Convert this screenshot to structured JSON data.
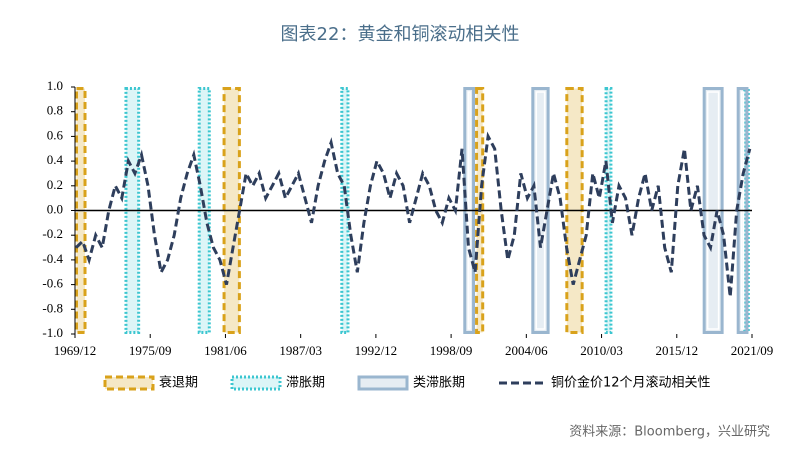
{
  "chart_data": {
    "type": "line",
    "title": "图表22：黄金和铜滚动相关性",
    "source": "资料来源：Bloomberg，兴业研究",
    "xlim": [
      1969.92,
      2021.67
    ],
    "xticks": [
      {
        "value": 1969.92,
        "label": "1969/12"
      },
      {
        "value": 1975.67,
        "label": "1975/09"
      },
      {
        "value": 1981.42,
        "label": "1981/06"
      },
      {
        "value": 1987.17,
        "label": "1987/03"
      },
      {
        "value": 1992.92,
        "label": "1992/12"
      },
      {
        "value": 1998.67,
        "label": "1998/09"
      },
      {
        "value": 2004.42,
        "label": "2004/06"
      },
      {
        "value": 2010.17,
        "label": "2010/03"
      },
      {
        "value": 2015.92,
        "label": "2015/12"
      },
      {
        "value": 2021.67,
        "label": "2021/09"
      }
    ],
    "ylim": [
      -1,
      1
    ],
    "yticks": [
      {
        "value": 1,
        "label": "1.0"
      },
      0.8,
      0.6,
      0.4,
      0.2,
      {
        "value": 0,
        "label": "0.0"
      },
      -0.2,
      -0.4,
      -0.6,
      -0.8,
      {
        "value": -1,
        "label": "-1.0"
      }
    ],
    "periods": [
      {
        "name": "衰退期",
        "color": "#d9a21b",
        "style": "dashed",
        "ranges": [
          [
            1969.92,
            1970.8
          ],
          [
            1981.2,
            1982.6
          ],
          [
            2000.5,
            2001.2
          ],
          [
            2007.4,
            2008.8
          ]
        ]
      },
      {
        "name": "滞胀期",
        "color": "#3cc6d0",
        "style": "dotted",
        "ranges": [
          [
            1973.7,
            1974.9
          ],
          [
            1979.3,
            1980.3
          ],
          [
            1990.2,
            1990.9
          ],
          [
            2010.4,
            2011.0
          ],
          [
            2021.0,
            2021.5
          ]
        ]
      },
      {
        "name": "类滞胀期",
        "color": "#9ab6cf",
        "style": "double",
        "ranges": [
          [
            1999.6,
            2000.5
          ],
          [
            2004.8,
            2006.2
          ],
          [
            2017.9,
            2019.5
          ],
          [
            2020.5,
            2021.4
          ]
        ]
      }
    ],
    "x": [
      1970,
      1970.5,
      1971,
      1971.5,
      1972,
      1972.5,
      1973,
      1973.5,
      1974,
      1974.5,
      1975,
      1975.5,
      1976,
      1976.5,
      1977,
      1977.5,
      1978,
      1978.5,
      1979,
      1979.5,
      1980,
      1980.5,
      1981,
      1981.5,
      1982,
      1982.5,
      1983,
      1983.5,
      1984,
      1984.5,
      1985,
      1985.5,
      1986,
      1986.5,
      1987,
      1987.5,
      1988,
      1988.5,
      1989,
      1989.5,
      1990,
      1990.5,
      1991,
      1991.5,
      1992,
      1992.5,
      1993,
      1993.5,
      1994,
      1994.5,
      1995,
      1995.5,
      1996,
      1996.5,
      1997,
      1997.5,
      1998,
      1998.5,
      1999,
      1999.5,
      2000,
      2000.5,
      2001,
      2001.5,
      2002,
      2002.5,
      2003,
      2003.5,
      2004,
      2004.5,
      2005,
      2005.5,
      2006,
      2006.5,
      2007,
      2007.5,
      2008,
      2008.5,
      2009,
      2009.5,
      2010,
      2010.5,
      2011,
      2011.5,
      2012,
      2012.5,
      2013,
      2013.5,
      2014,
      2014.5,
      2015,
      2015.5,
      2016,
      2016.5,
      2017,
      2017.5,
      2018,
      2018.5,
      2019,
      2019.5,
      2020,
      2020.5,
      2021,
      2021.5
    ],
    "series": [
      {
        "name": "铜价金价12个月滚动相关性",
        "color": "#2e3e5c",
        "values": [
          -0.3,
          -0.25,
          -0.4,
          -0.2,
          -0.3,
          0.0,
          0.2,
          0.1,
          0.4,
          0.3,
          0.45,
          0.2,
          -0.2,
          -0.5,
          -0.4,
          -0.2,
          0.1,
          0.3,
          0.45,
          0.2,
          -0.1,
          -0.3,
          -0.4,
          -0.6,
          -0.3,
          0.0,
          0.3,
          0.2,
          0.3,
          0.1,
          0.2,
          0.3,
          0.1,
          0.2,
          0.3,
          0.1,
          -0.1,
          0.2,
          0.4,
          0.55,
          0.3,
          0.2,
          -0.2,
          -0.5,
          -0.1,
          0.2,
          0.4,
          0.3,
          0.1,
          0.3,
          0.2,
          -0.1,
          0.1,
          0.3,
          0.2,
          0.0,
          -0.1,
          0.1,
          0.0,
          0.5,
          -0.3,
          -0.5,
          0.2,
          0.6,
          0.5,
          0.0,
          -0.4,
          -0.2,
          0.3,
          0.1,
          0.2,
          -0.3,
          0.0,
          0.3,
          0.1,
          -0.3,
          -0.6,
          -0.4,
          -0.2,
          0.3,
          0.1,
          0.4,
          -0.1,
          0.2,
          0.1,
          -0.2,
          0.1,
          0.3,
          0.0,
          0.2,
          -0.3,
          -0.5,
          0.2,
          0.5,
          0.0,
          0.2,
          -0.2,
          -0.3,
          0.0,
          -0.2,
          -0.7,
          0.0,
          0.3,
          0.5
        ]
      }
    ]
  }
}
